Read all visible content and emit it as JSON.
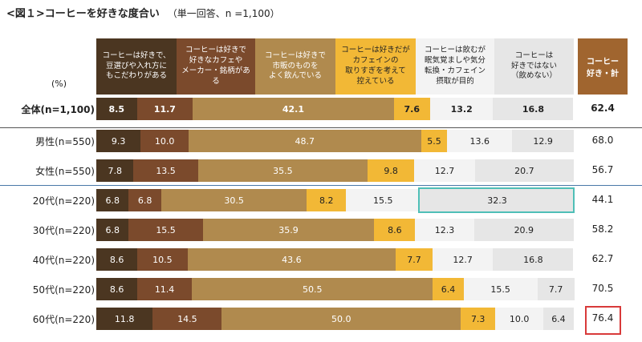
{
  "title": "<図１>コーヒーを好きな度合い",
  "subtitle": "（単一回答、n =1,100）",
  "unit_label": "(%)",
  "colors": {
    "c1": "#4b3621",
    "c2": "#7b4a2c",
    "c3": "#b08a4e",
    "c4": "#f2b836",
    "c5": "#f3f3f3",
    "c6": "#e6e6e6",
    "total_header": "#a0652f",
    "highlight_teal": "#4fbfb7",
    "highlight_red": "#d83a3a"
  },
  "chart_data": {
    "type": "bar",
    "orientation": "horizontal-stacked-100",
    "categories": [
      "全体(n=1,100)",
      "男性(n=550)",
      "女性(n=550)",
      "20代(n=220)",
      "30代(n=220)",
      "40代(n=220)",
      "50代(n=220)",
      "60代(n=220)"
    ],
    "series": [
      {
        "name": "コーヒーは好きで、\n豆選びや入れ方に\nもこだわりがある",
        "values": [
          8.5,
          9.3,
          7.8,
          6.8,
          6.8,
          8.6,
          8.6,
          11.8
        ]
      },
      {
        "name": "コーヒーは好きで\n好きなカフェや\nメーカー・銘柄がある",
        "values": [
          11.7,
          10.0,
          13.5,
          6.8,
          15.5,
          10.5,
          11.4,
          14.5
        ]
      },
      {
        "name": "コーヒーは好きで\n市販のものを\nよく飲んでいる",
        "values": [
          42.1,
          48.7,
          35.5,
          30.5,
          35.9,
          43.6,
          50.5,
          50.0
        ]
      },
      {
        "name": "コーヒーは好きだが\nカフェインの\n取りすぎを考えて\n控えている",
        "values": [
          7.6,
          5.5,
          9.8,
          8.2,
          8.6,
          7.7,
          6.4,
          7.3
        ]
      },
      {
        "name": "コーヒーは飲むが\n眠気覚ましや気分\n転換・カフェイン\n摂取が目的",
        "values": [
          13.2,
          13.6,
          12.7,
          15.5,
          12.3,
          12.7,
          15.5,
          10.0
        ]
      },
      {
        "name": "コーヒーは\n好きではない\n（飲めない）",
        "values": [
          16.8,
          12.9,
          20.7,
          32.3,
          20.9,
          16.8,
          7.7,
          6.4
        ]
      }
    ],
    "totals": {
      "name": "コーヒー\n好き・計",
      "values": [
        62.4,
        68.0,
        56.7,
        44.1,
        58.2,
        62.7,
        70.5,
        76.4
      ]
    },
    "highlights": [
      {
        "category": "20代(n=220)",
        "series": "コーヒーは\n好きではない\n（飲めない）",
        "color": "teal"
      },
      {
        "category": "60代(n=220)",
        "series": "コーヒー\n好き・計",
        "color": "red"
      }
    ]
  }
}
